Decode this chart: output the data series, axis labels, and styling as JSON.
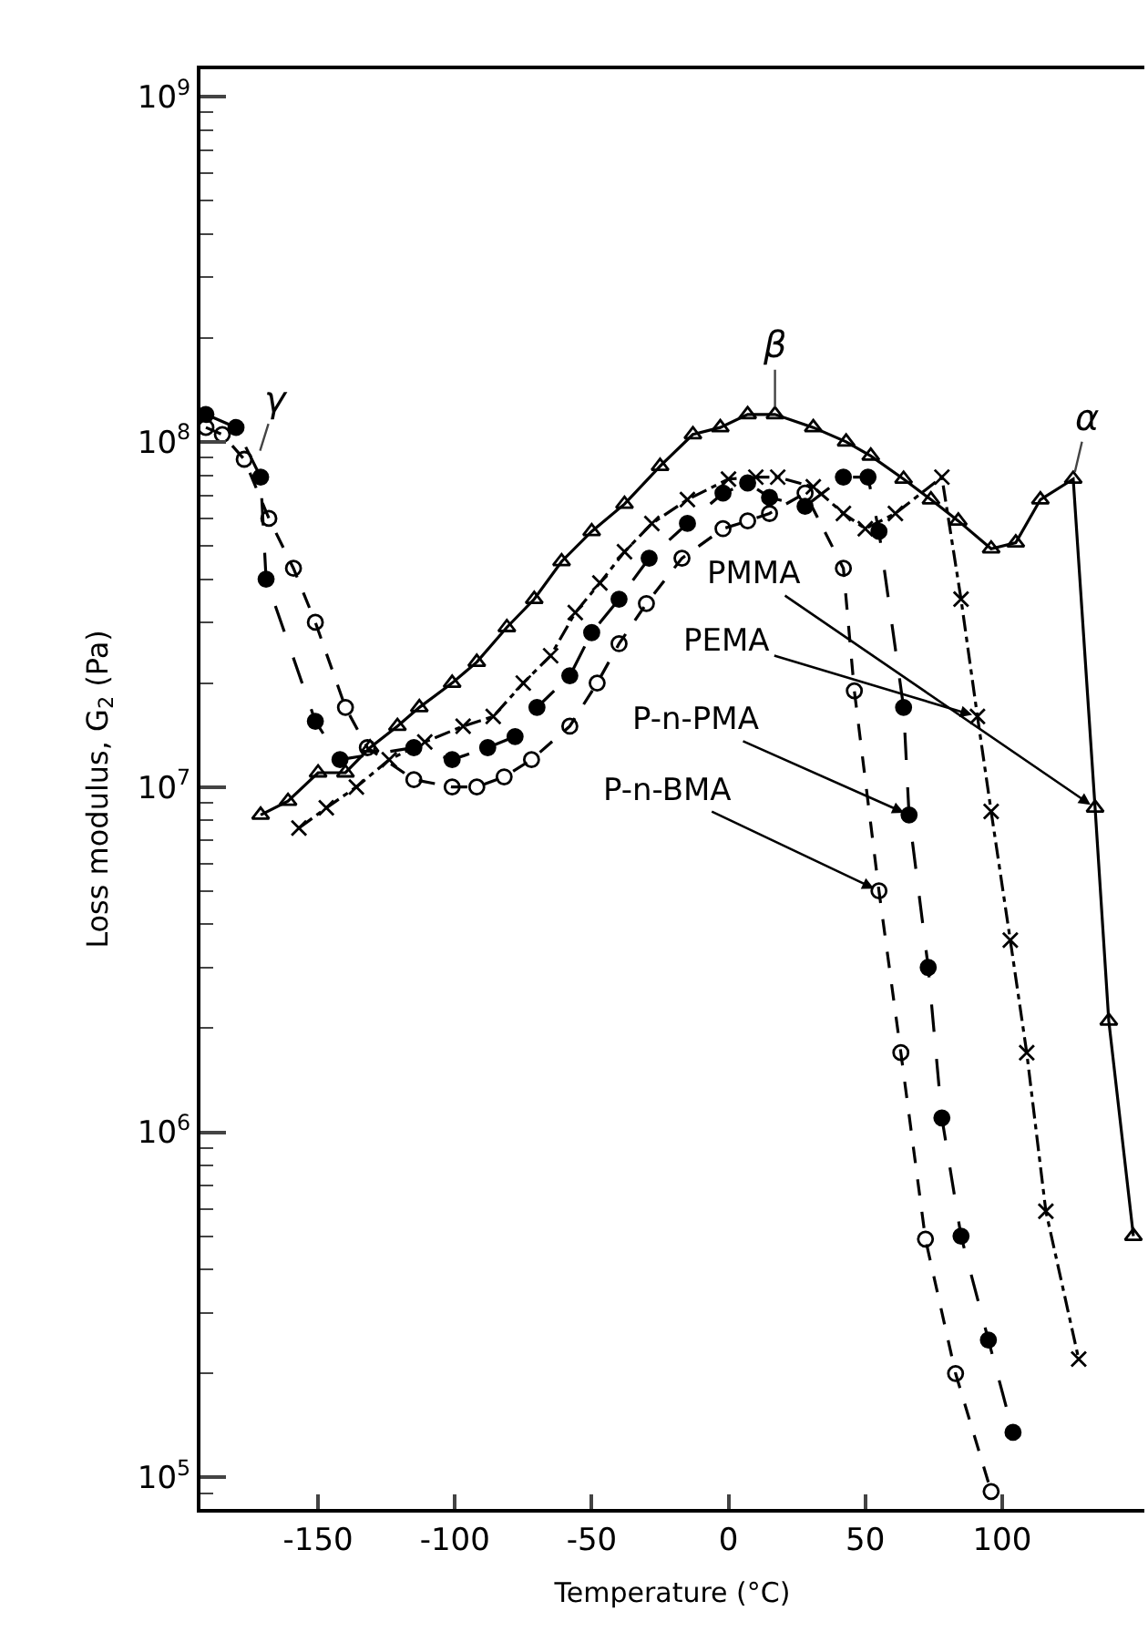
{
  "chart_data": {
    "type": "line",
    "xlabel": "Temperature (°C)",
    "ylabel": "Loss modulus, G$_{2}$ (Pa)",
    "log": "y",
    "grid": false,
    "legend": false,
    "xlim": [
      -193,
      152
    ],
    "xticks": [
      -150,
      -100,
      -50,
      0,
      50,
      100
    ],
    "ylim": [
      81000,
      1200000000
    ],
    "yticks": [
      {
        "value": 100000,
        "label": "10$^{5}$"
      },
      {
        "value": 1000000,
        "label": "10$^{6}$"
      },
      {
        "value": 10000000,
        "label": "10$^{7}$"
      },
      {
        "value": 100000000,
        "label": "10$^{8}$"
      },
      {
        "value": 1000000000,
        "label": "10$^{9}$"
      }
    ],
    "annotations": [
      {
        "text": "γ",
        "x": -172,
        "y": 90000000
      },
      {
        "text": "β",
        "x": 17,
        "y": 120000000
      },
      {
        "text": "α",
        "x": 126,
        "y": 78000000
      }
    ],
    "series": [
      {
        "name": "PMMA",
        "color": "#000000",
        "marker": "triangle-open",
        "line_style": "solid",
        "x": [
          -171,
          -161,
          -150,
          -140,
          -131,
          -121,
          -113,
          -101,
          -92,
          -81,
          -71,
          -61,
          -50,
          -38,
          -25,
          -13,
          -3,
          7,
          17,
          31,
          43,
          52,
          64,
          74,
          84,
          96,
          105,
          114,
          126,
          134,
          139,
          148
        ],
        "values": [
          8300000,
          9100000,
          11000000,
          11000000,
          13000000,
          15000000,
          17000000,
          20000000,
          23000000,
          29000000,
          35000000,
          45000000,
          55000000,
          66000000,
          85000000,
          105000000,
          110000000,
          120000000,
          120000000,
          110000000,
          100000000,
          91000000,
          78000000,
          68000000,
          59000000,
          49000000,
          51000000,
          68000000,
          78000000,
          8700000,
          2100000,
          500000
        ]
      },
      {
        "name": "PEMA",
        "color": "#000000",
        "marker": "cross",
        "line_style": "dashdot",
        "x": [
          -157,
          -147,
          -136,
          -124,
          -111,
          -97,
          -86,
          -75,
          -65,
          -56,
          -47,
          -38,
          -28,
          -15,
          0,
          10,
          18,
          31,
          42,
          50,
          61,
          78,
          85,
          91,
          96,
          103,
          109,
          116,
          128
        ],
        "values": [
          7600000,
          8700000,
          10000000,
          12000000,
          13500000,
          15000000,
          16000000,
          20000000,
          24000000,
          32000000,
          39000000,
          48000000,
          58000000,
          68000000,
          78000000,
          79000000,
          79000000,
          74000000,
          62000000,
          56000000,
          62000000,
          79000000,
          35000000,
          16000000,
          8500000,
          3600000,
          1700000,
          590000,
          220000
        ]
      },
      {
        "name": "P-n-PMA",
        "color": "#000000",
        "marker": "circle",
        "line_style": "longdash",
        "x": [
          -191,
          -180,
          -171,
          -169,
          -151,
          -142,
          -115,
          -101,
          -88,
          -78,
          -70,
          -58,
          -50,
          -40,
          -29,
          -15,
          -2,
          7,
          15,
          28,
          42,
          51,
          55,
          64,
          66,
          73,
          78,
          85,
          95,
          104
        ],
        "values": [
          120000000,
          110000000,
          79000000,
          40000000,
          15500000,
          12000000,
          13000000,
          12000000,
          13000000,
          14000000,
          17000000,
          21000000,
          28000000,
          35000000,
          46000000,
          58000000,
          71000000,
          76000000,
          69000000,
          65000000,
          79000000,
          79000000,
          55000000,
          17000000,
          8300000,
          3000000,
          1100000,
          500000,
          250000,
          135000
        ]
      },
      {
        "name": "P-n-BMA",
        "color": "#000000",
        "marker": "circle-open",
        "line_style": "dashed",
        "x": [
          -191,
          -185,
          -177,
          -168,
          -159,
          -151,
          -140,
          -132,
          -115,
          -101,
          -92,
          -82,
          -72,
          -58,
          -48,
          -40,
          -30,
          -17,
          -2,
          7,
          15,
          28,
          42,
          46,
          55,
          63,
          72,
          83,
          96
        ],
        "values": [
          110000000,
          105000000,
          89000000,
          60000000,
          43000000,
          30000000,
          17000000,
          13000000,
          10500000,
          10000000,
          10000000,
          10700000,
          12000000,
          15000000,
          20000000,
          26000000,
          34000000,
          46000000,
          56000000,
          59000000,
          62000000,
          71000000,
          43000000,
          19000000,
          5000000,
          1700000,
          490000,
          200000,
          91000
        ]
      }
    ]
  }
}
